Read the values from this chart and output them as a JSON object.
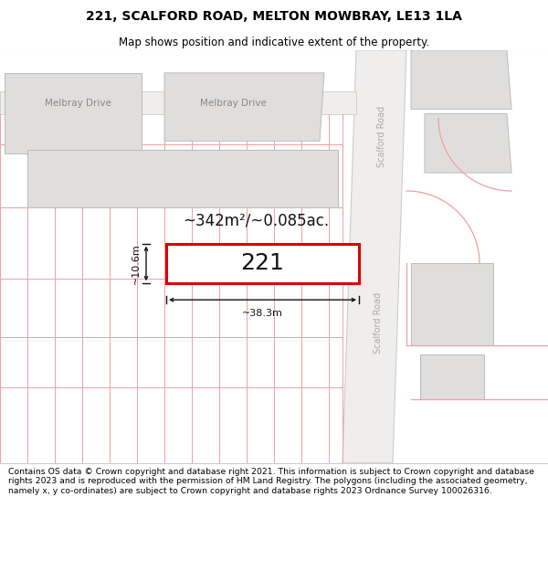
{
  "title_line1": "221, SCALFORD ROAD, MELTON MOWBRAY, LE13 1LA",
  "title_line2": "Map shows position and indicative extent of the property.",
  "footer_text": "Contains OS data © Crown copyright and database right 2021. This information is subject to Crown copyright and database rights 2023 and is reproduced with the permission of HM Land Registry. The polygons (including the associated geometry, namely x, y co-ordinates) are subject to Crown copyright and database rights 2023 Ordnance Survey 100026316.",
  "area_text": "~342m²/~0.085ac.",
  "label_221": "221",
  "dim_width": "~38.3m",
  "dim_height": "~10.6m",
  "map_bg": "#ffffff",
  "road_fill": "#f0eeec",
  "road_line": "#cccccc",
  "bld_fill": "#e0dedd",
  "bld_edge": "#bbbbbb",
  "plot_line": "#f0a0a0",
  "highlight_edge": "#dd0000",
  "dim_color": "#111111",
  "label_color": "#111111",
  "road_text_color": "#aaaaaa",
  "street_text_color": "#888888"
}
